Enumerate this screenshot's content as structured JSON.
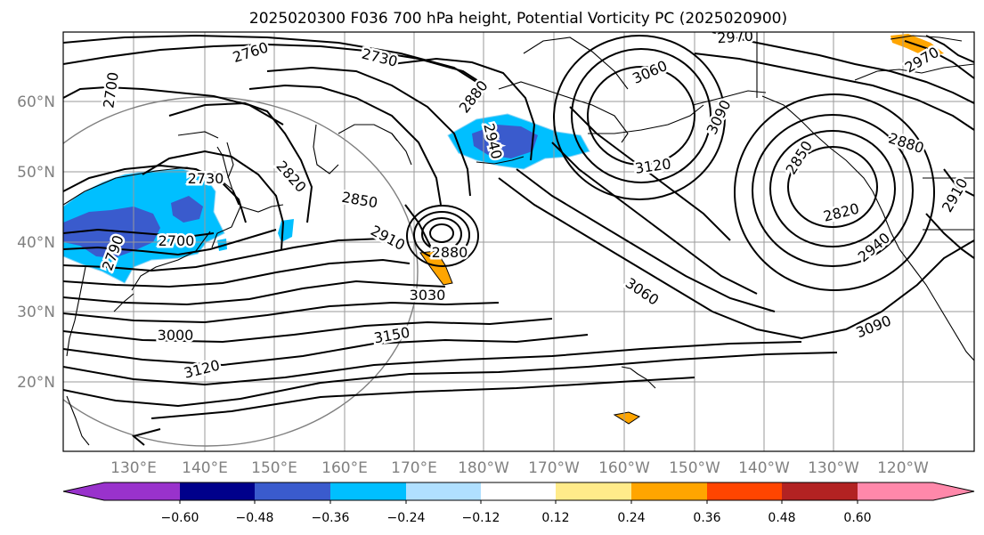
{
  "title": "2025020300 F036 700 hPa height, Potential Vorticity PC (2025020900)",
  "lat_labels": [
    "60°N",
    "50°N",
    "40°N",
    "30°N",
    "20°N"
  ],
  "lon_labels": [
    "130°E",
    "140°E",
    "150°E",
    "160°E",
    "170°E",
    "180°W",
    "170°W",
    "160°W",
    "150°W",
    "140°W",
    "130°W",
    "120°W"
  ],
  "colorbar": {
    "colors": [
      "#9932cc",
      "#00008b",
      "#3a5bcd",
      "#00bfff",
      "#b0e0ff",
      "#ffffff",
      "#ffeb8a",
      "#ffa500",
      "#ff4500",
      "#b22222",
      "#ff88aa"
    ],
    "tick_labels": [
      "−0.60",
      "−0.48",
      "−0.36",
      "−0.24",
      "−0.12",
      "0.12",
      "0.24",
      "0.36",
      "0.48",
      "0.60"
    ]
  },
  "contour_labels": [
    "2700",
    "2760",
    "2730",
    "2970",
    "2880",
    "3060",
    "2940",
    "3090",
    "3120",
    "2850",
    "2880",
    "2820",
    "2850",
    "2820",
    "2730",
    "2790",
    "2700",
    "2910",
    "2880",
    "3030",
    "3060",
    "2940",
    "3000",
    "3150",
    "3090",
    "3120",
    "2910",
    "2970"
  ]
}
